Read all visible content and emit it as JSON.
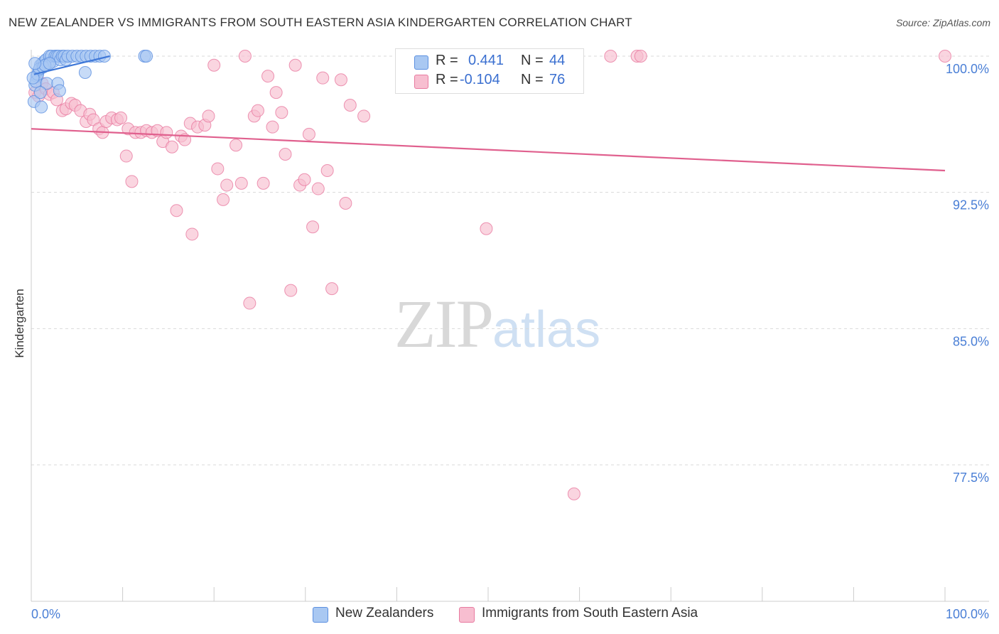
{
  "title": "NEW ZEALANDER VS IMMIGRANTS FROM SOUTH EASTERN ASIA KINDERGARTEN CORRELATION CHART",
  "source": "Source: ZipAtlas.com",
  "watermark": {
    "zip": "ZIP",
    "atlas": "atlas"
  },
  "legend": {
    "r_label": "R =",
    "n_label": "N =",
    "series": [
      {
        "name": "New Zealanders",
        "r": "0.441",
        "n": "44",
        "fill": "#a9c8f2",
        "stroke": "#5b8fe0"
      },
      {
        "name": "Immigrants from South Eastern Asia",
        "r": "-0.104",
        "n": "76",
        "fill": "#f7bed0",
        "stroke": "#e87aa0"
      }
    ]
  },
  "chart_data": {
    "type": "scatter",
    "title": "NEW ZEALANDER VS IMMIGRANTS FROM SOUTH EASTERN ASIA KINDERGARTEN CORRELATION CHART",
    "xlabel": "",
    "ylabel": "Kindergarten",
    "xlim": [
      0,
      100
    ],
    "ylim": [
      70.5,
      100.9
    ],
    "x_ticks_labels": [
      "0.0%",
      "100.0%"
    ],
    "y_ticks": [
      100.0,
      92.5,
      85.0,
      77.5
    ],
    "y_ticks_labels": [
      "100.0%",
      "92.5%",
      "85.0%",
      "77.5%"
    ],
    "grid": "horizontal dashed",
    "series": [
      {
        "name": "New Zealanders",
        "color": "#5b8fe0",
        "fill": "#a9c8f2",
        "trend": {
          "x": [
            0.3,
            8.6
          ],
          "y": [
            99.0,
            100.0
          ]
        },
        "points": [
          [
            0.4,
            98.4
          ],
          [
            0.6,
            98.9
          ],
          [
            0.8,
            99.2
          ],
          [
            1.0,
            99.5
          ],
          [
            1.2,
            99.6
          ],
          [
            1.4,
            99.7
          ],
          [
            1.6,
            99.8
          ],
          [
            1.8,
            99.6
          ],
          [
            2.0,
            100.0
          ],
          [
            2.2,
            100.0
          ],
          [
            2.4,
            99.7
          ],
          [
            2.6,
            100.0
          ],
          [
            2.8,
            100.0
          ],
          [
            3.0,
            100.0
          ],
          [
            3.2,
            99.8
          ],
          [
            3.4,
            100.0
          ],
          [
            3.6,
            100.0
          ],
          [
            3.8,
            99.8
          ],
          [
            4.0,
            100.0
          ],
          [
            4.5,
            100.0
          ],
          [
            5.0,
            100.0
          ],
          [
            5.5,
            100.0
          ],
          [
            6.0,
            100.0
          ],
          [
            6.5,
            100.0
          ],
          [
            7.0,
            100.0
          ],
          [
            7.5,
            100.0
          ],
          [
            8.0,
            100.0
          ],
          [
            0.3,
            97.5
          ],
          [
            0.5,
            98.6
          ],
          [
            0.7,
            99.0
          ],
          [
            0.9,
            99.3
          ],
          [
            1.1,
            97.2
          ],
          [
            1.3,
            99.4
          ],
          [
            1.5,
            99.5
          ],
          [
            1.7,
            98.5
          ],
          [
            2.9,
            98.5
          ],
          [
            3.1,
            98.1
          ],
          [
            5.9,
            99.1
          ],
          [
            12.4,
            100.0
          ],
          [
            12.6,
            100.0
          ],
          [
            0.2,
            98.8
          ],
          [
            0.4,
            99.6
          ],
          [
            1.0,
            98.0
          ],
          [
            2.0,
            99.6
          ]
        ]
      },
      {
        "name": "Immigrants from South Eastern Asia",
        "color": "#e87aa0",
        "fill": "#f7bed0",
        "trend": {
          "x": [
            0,
            100
          ],
          "y": [
            96.0,
            93.7
          ]
        },
        "points": [
          [
            0.4,
            98.0
          ],
          [
            0.8,
            97.8
          ],
          [
            1.2,
            98.5
          ],
          [
            1.6,
            98.2
          ],
          [
            2.0,
            97.9
          ],
          [
            2.4,
            98.0
          ],
          [
            2.8,
            97.6
          ],
          [
            3.4,
            97.0
          ],
          [
            3.8,
            97.1
          ],
          [
            4.4,
            97.4
          ],
          [
            4.8,
            97.3
          ],
          [
            5.4,
            97.0
          ],
          [
            6.0,
            96.4
          ],
          [
            6.4,
            96.8
          ],
          [
            6.8,
            96.5
          ],
          [
            7.4,
            96.0
          ],
          [
            7.8,
            95.8
          ],
          [
            8.2,
            96.4
          ],
          [
            8.8,
            96.6
          ],
          [
            9.4,
            96.5
          ],
          [
            9.8,
            96.6
          ],
          [
            10.6,
            96.0
          ],
          [
            11.4,
            95.8
          ],
          [
            12.0,
            95.8
          ],
          [
            12.6,
            95.9
          ],
          [
            13.2,
            95.8
          ],
          [
            13.8,
            95.9
          ],
          [
            14.4,
            95.3
          ],
          [
            14.8,
            95.8
          ],
          [
            15.4,
            95.0
          ],
          [
            16.4,
            95.6
          ],
          [
            16.8,
            95.4
          ],
          [
            17.4,
            96.3
          ],
          [
            18.2,
            96.1
          ],
          [
            19.0,
            96.2
          ],
          [
            19.4,
            96.7
          ],
          [
            20.0,
            99.5
          ],
          [
            20.4,
            93.8
          ],
          [
            21.0,
            92.1
          ],
          [
            21.4,
            92.9
          ],
          [
            22.4,
            95.1
          ],
          [
            23.0,
            93.0
          ],
          [
            23.4,
            100.0
          ],
          [
            23.9,
            86.4
          ],
          [
            24.4,
            96.7
          ],
          [
            24.8,
            97.0
          ],
          [
            25.4,
            93.0
          ],
          [
            25.9,
            98.9
          ],
          [
            26.4,
            96.1
          ],
          [
            26.8,
            98.0
          ],
          [
            27.4,
            96.9
          ],
          [
            27.8,
            94.6
          ],
          [
            28.4,
            87.1
          ],
          [
            28.9,
            99.5
          ],
          [
            29.4,
            92.9
          ],
          [
            29.9,
            93.2
          ],
          [
            30.4,
            95.7
          ],
          [
            30.8,
            90.6
          ],
          [
            31.4,
            92.7
          ],
          [
            31.9,
            98.8
          ],
          [
            32.4,
            93.7
          ],
          [
            32.9,
            87.2
          ],
          [
            33.9,
            98.7
          ],
          [
            34.4,
            91.9
          ],
          [
            34.9,
            97.3
          ],
          [
            36.4,
            96.7
          ],
          [
            11.0,
            93.1
          ],
          [
            10.4,
            94.5
          ],
          [
            15.9,
            91.5
          ],
          [
            17.6,
            90.2
          ],
          [
            49.8,
            90.5
          ],
          [
            59.4,
            75.9
          ],
          [
            63.4,
            100.0
          ],
          [
            66.3,
            100.0
          ],
          [
            66.7,
            100.0
          ],
          [
            100.0,
            100.0
          ]
        ]
      }
    ]
  }
}
